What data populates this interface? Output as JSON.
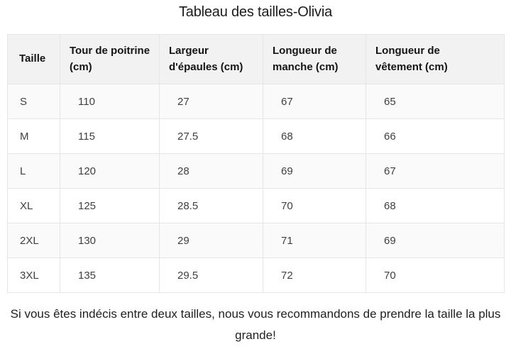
{
  "page": {
    "title": "Tableau des tailles-Olivia",
    "footer_note": "Si vous êtes indécis entre deux tailles, nous vous recommandons de prendre la taille la plus grande!"
  },
  "table": {
    "headers": [
      "Taille",
      "Tour de poitrine (cm)",
      "Largeur d'épaules (cm)",
      "Longueur de manche (cm)",
      "Longueur de vêtement (cm)"
    ],
    "rows": [
      [
        "S",
        "110",
        "27",
        "67",
        "65"
      ],
      [
        "M",
        "115",
        "27.5",
        "68",
        "66"
      ],
      [
        "L",
        "120",
        "28",
        "69",
        "67"
      ],
      [
        "XL",
        "125",
        "28.5",
        "70",
        "68"
      ],
      [
        "2XL",
        "130",
        "29",
        "71",
        "69"
      ],
      [
        "3XL",
        "135",
        "29.5",
        "72",
        "70"
      ]
    ]
  },
  "colors": {
    "header_bg": "#f2f2f2",
    "row_alt_bg": "#fafafa",
    "border": "#e6e6e6",
    "text": "#3f3f3f",
    "heading_text": "#141414"
  }
}
